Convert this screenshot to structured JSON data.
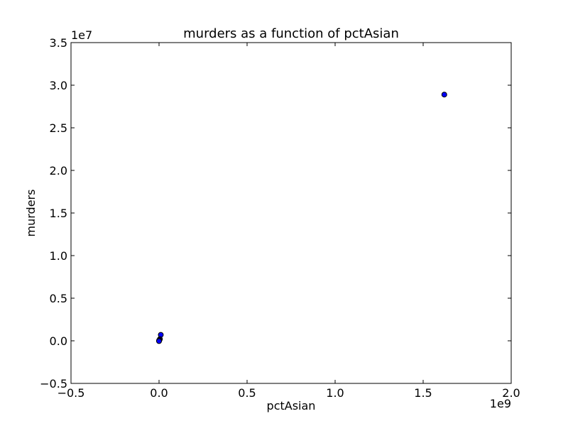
{
  "chart_data": {
    "type": "scatter",
    "title": "murders as a function of pctAsian",
    "xlabel": "pctAsian",
    "ylabel": "murders",
    "x_offset_label": "1e9",
    "y_offset_label": "1e7",
    "xlim": [
      -0.5,
      2.0
    ],
    "ylim": [
      -0.5,
      3.5
    ],
    "x_ticks": [
      -0.5,
      0.0,
      0.5,
      1.0,
      1.5,
      2.0
    ],
    "x_tick_labels": [
      "−0.5",
      "0.0",
      "0.5",
      "1.0",
      "1.5",
      "2.0"
    ],
    "y_ticks": [
      -0.5,
      0.0,
      0.5,
      1.0,
      1.5,
      2.0,
      2.5,
      3.0,
      3.5
    ],
    "y_tick_labels": [
      "−0.5",
      "0.0",
      "0.5",
      "1.0",
      "1.5",
      "2.0",
      "2.5",
      "3.0",
      "3.5"
    ],
    "grid": false,
    "marker_color": "#0000ff",
    "marker_edge_color": "#000000",
    "points": [
      {
        "x": 1.62,
        "y": 2.89
      },
      {
        "x": 0.01,
        "y": 0.07
      },
      {
        "x": 0.005,
        "y": 0.02
      },
      {
        "x": 0.002,
        "y": 0.01
      },
      {
        "x": 0.001,
        "y": 0.005
      },
      {
        "x": 0.0,
        "y": 0.0
      },
      {
        "x": 0.0,
        "y": -0.003
      }
    ]
  }
}
